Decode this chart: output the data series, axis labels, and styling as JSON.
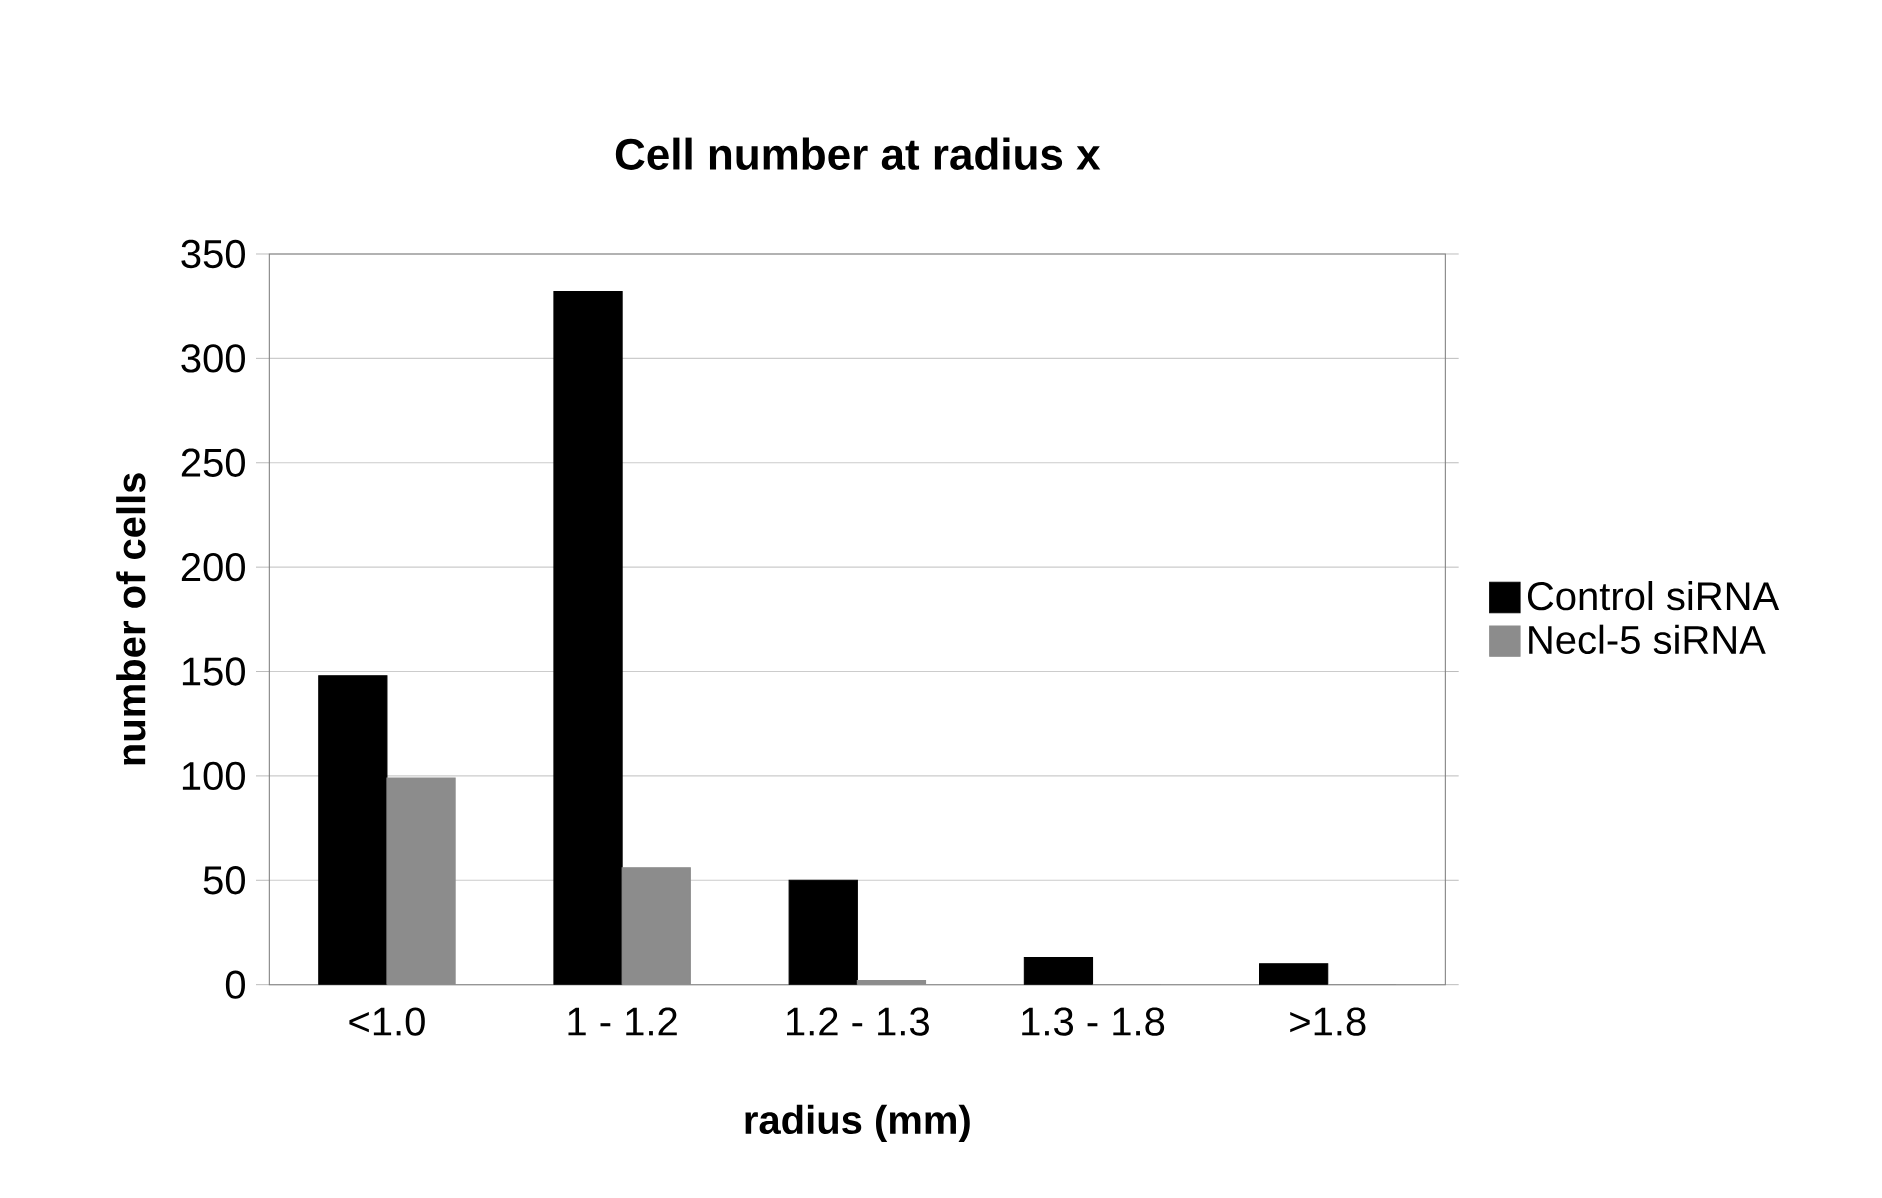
{
  "chart_data": {
    "type": "bar",
    "title": "Cell number at radius x",
    "xlabel": "radius (mm)",
    "ylabel": "number of cells",
    "categories": [
      "<1.0",
      "1 - 1.2",
      "1.2 - 1.3",
      "1.3 - 1.8",
      ">1.8"
    ],
    "series": [
      {
        "name": "Control siRNA",
        "color": "#000000",
        "values": [
          148,
          332,
          50,
          13,
          10
        ]
      },
      {
        "name": "Necl-5 siRNA",
        "color": "#8c8c8c",
        "values": [
          99,
          56,
          2,
          0,
          0
        ]
      }
    ],
    "ylim": [
      0,
      350
    ],
    "yticks": [
      0,
      50,
      100,
      150,
      200,
      250,
      300,
      350
    ],
    "grid": "y",
    "legend": "right"
  }
}
